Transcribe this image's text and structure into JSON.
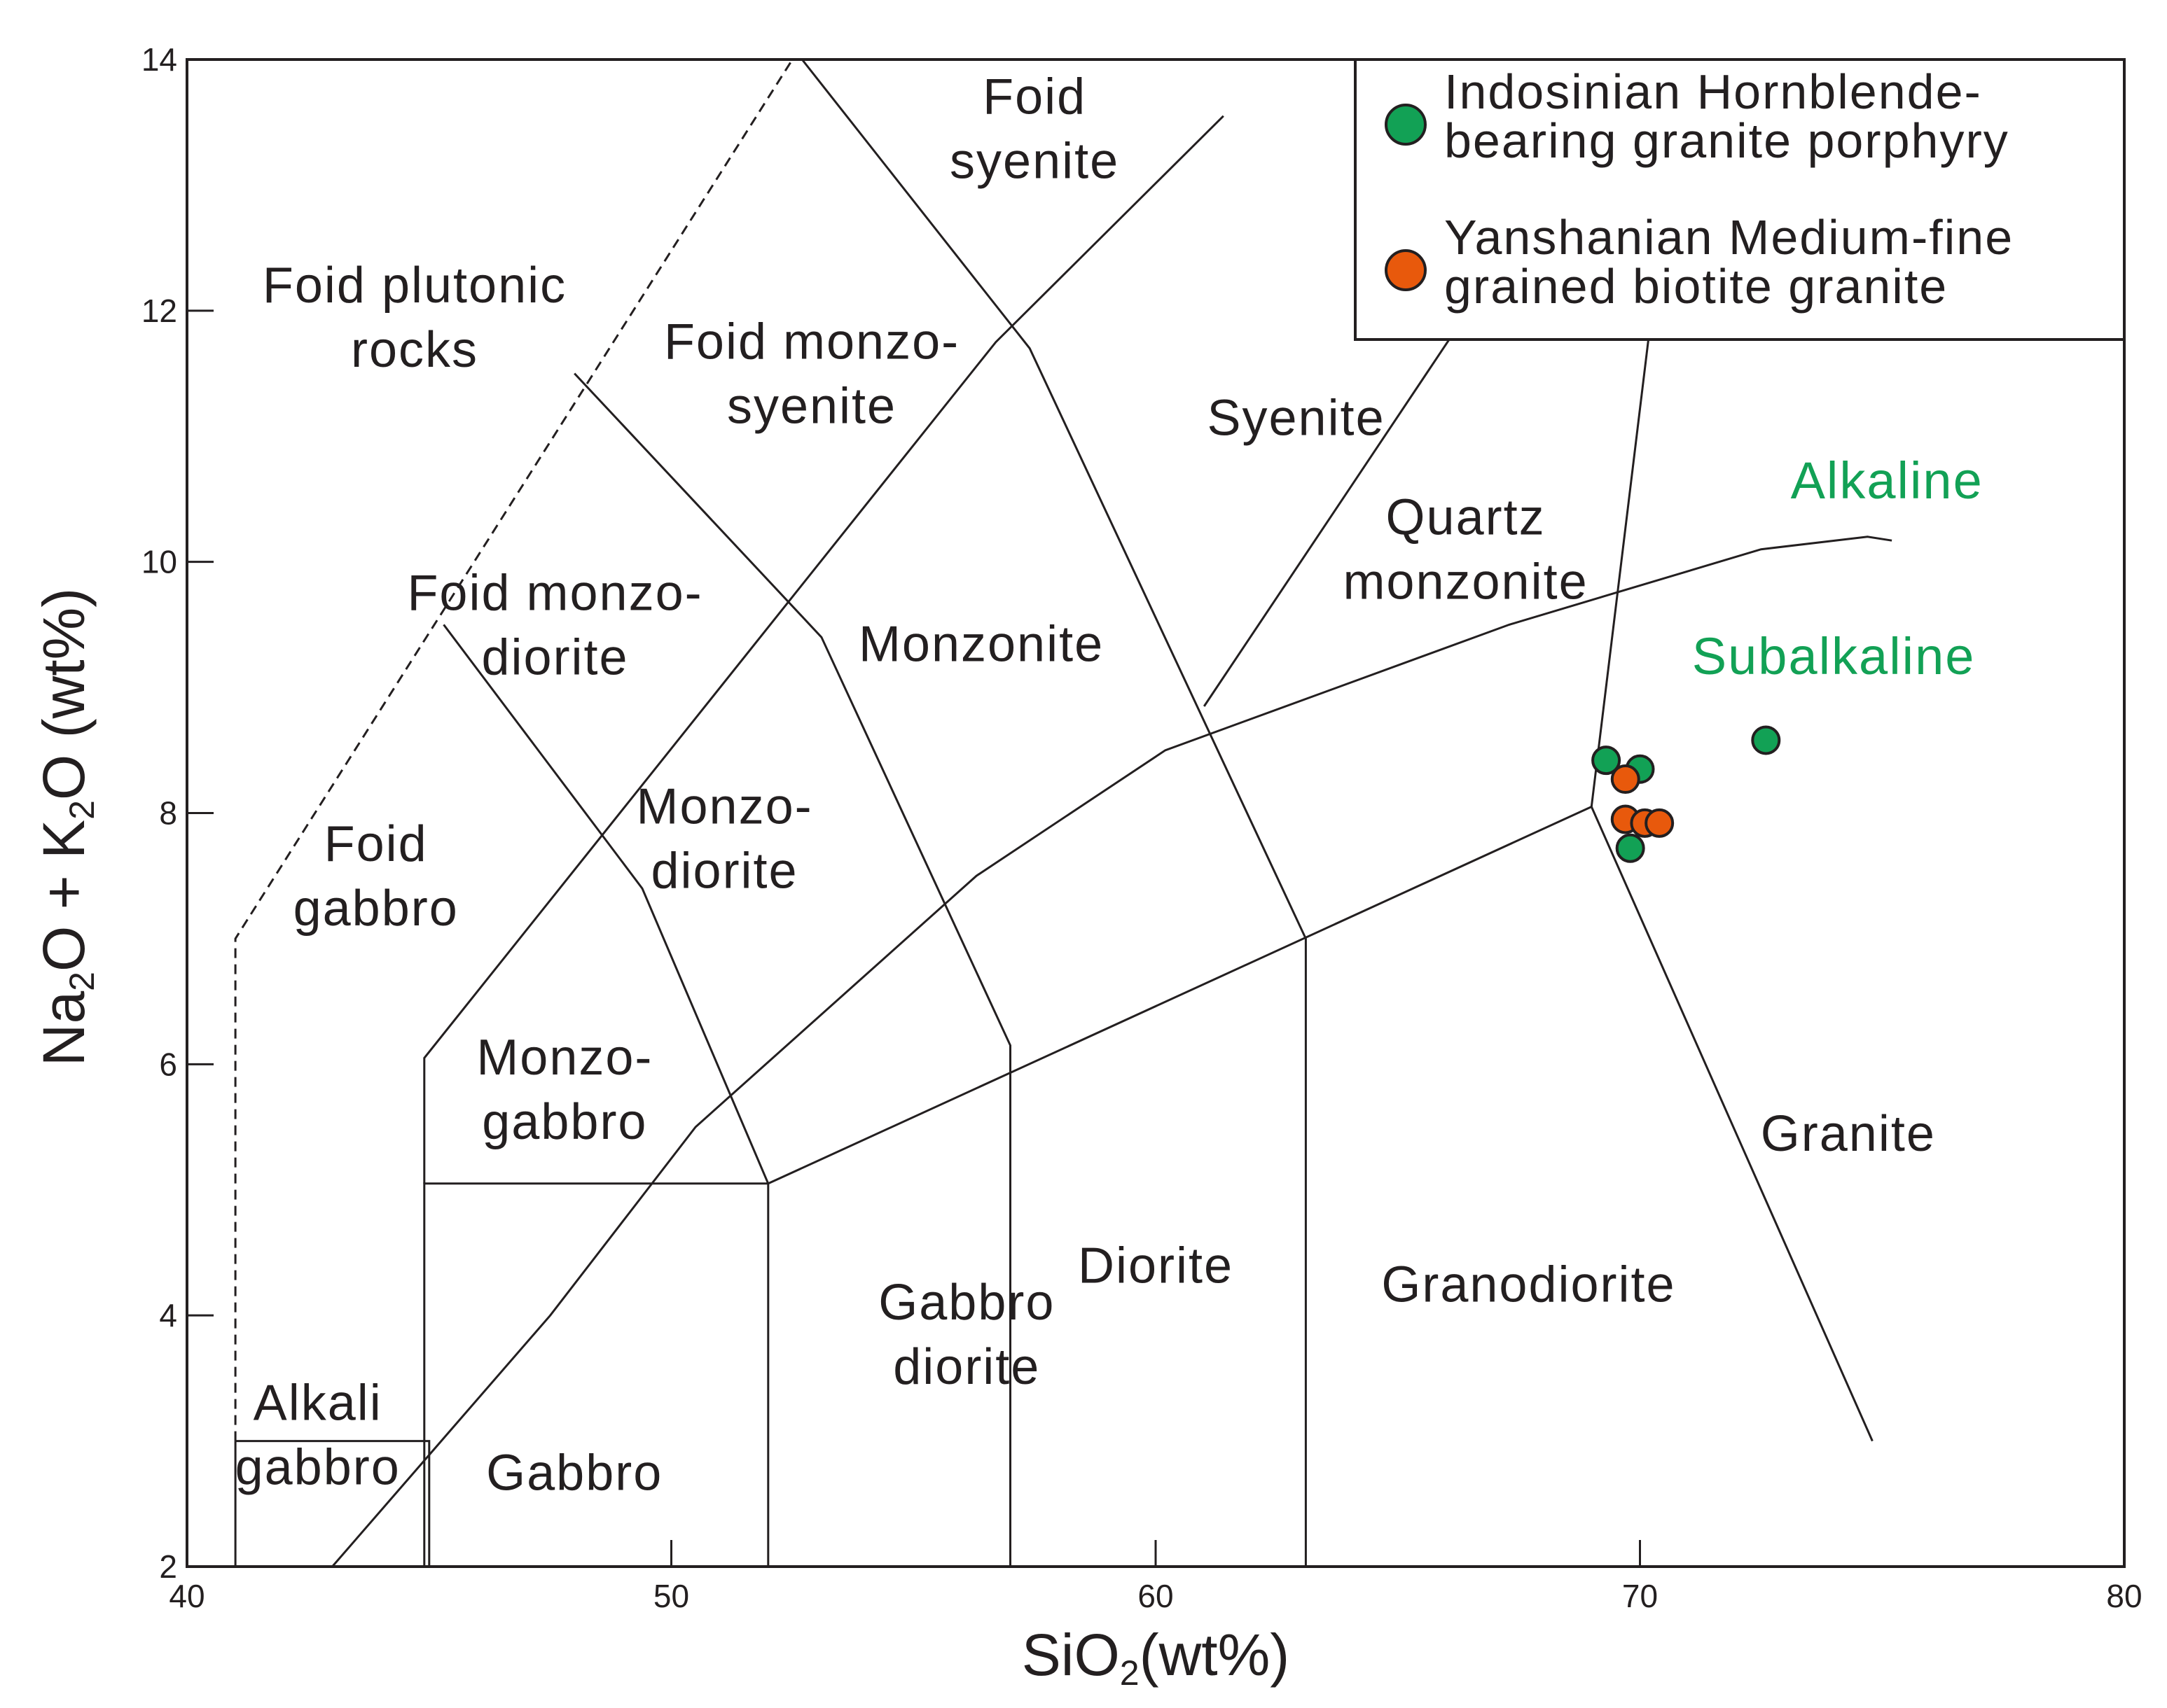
{
  "chart_data": {
    "type": "scatter",
    "title": "",
    "xlabel": {
      "main": "SiO",
      "sub": "2",
      "tail": "(wt%)"
    },
    "ylabel": {
      "parts": [
        {
          "t": "Na"
        },
        {
          "t": "2",
          "sub": true
        },
        {
          "t": "O + K"
        },
        {
          "t": "2",
          "sub": true
        },
        {
          "t": "O (wt%)"
        }
      ]
    },
    "xlim": [
      40,
      80
    ],
    "ylim": [
      2,
      14
    ],
    "xticks": [
      40,
      50,
      60,
      70,
      80
    ],
    "yticks": [
      2,
      4,
      6,
      8,
      10,
      12,
      14
    ],
    "grid": false,
    "legend_position": "top-right",
    "series": [
      {
        "name": "Indosinian Hornblende-bearing granite porphyry",
        "legend_lines": [
          "Indosinian  Hornblende-",
          "bearing granite porphyry"
        ],
        "color": "#12a155",
        "points": [
          [
            69.3,
            8.42
          ],
          [
            70.0,
            8.35
          ],
          [
            69.8,
            7.72
          ],
          [
            72.6,
            8.58
          ]
        ]
      },
      {
        "name": "Yanshanian Medium-fine grained biotite granite",
        "legend_lines": [
          "Yanshanian  Medium-fine",
          "grained biotite granite"
        ],
        "color": "#e8590c",
        "points": [
          [
            69.7,
            8.27
          ],
          [
            69.7,
            7.95
          ],
          [
            70.1,
            7.92
          ],
          [
            70.4,
            7.92
          ]
        ]
      }
    ],
    "boundaries": [
      {
        "style": "solid",
        "points": [
          [
            44.9,
            2.0
          ],
          [
            44.9,
            5.05
          ],
          [
            52.0,
            5.05
          ],
          [
            52.0,
            2.0
          ]
        ]
      },
      {
        "style": "solid",
        "points": [
          [
            44.9,
            5.05
          ],
          [
            44.9,
            6.05
          ],
          [
            56.7,
            11.75
          ],
          [
            61.4,
            13.55
          ]
        ]
      },
      {
        "style": "solid",
        "points": [
          [
            52.0,
            5.05
          ],
          [
            69.0,
            8.05
          ],
          [
            74.8,
            3.0
          ]
        ]
      },
      {
        "style": "solid",
        "points": [
          [
            57.0,
            2.0
          ],
          [
            57.0,
            6.15
          ],
          [
            53.1,
            9.4
          ],
          [
            48.0,
            11.5
          ]
        ]
      },
      {
        "style": "solid",
        "points": [
          [
            52.0,
            5.05
          ],
          [
            49.4,
            7.4
          ],
          [
            45.3,
            9.5
          ]
        ]
      },
      {
        "style": "solid",
        "points": [
          [
            63.1,
            2.0
          ],
          [
            63.1,
            7.0
          ],
          [
            57.4,
            11.7
          ],
          [
            52.7,
            14.0
          ]
        ]
      },
      {
        "style": "solid",
        "points": [
          [
            69.0,
            8.05
          ],
          [
            70.2,
            11.85
          ]
        ]
      },
      {
        "style": "solid",
        "points": [
          [
            61.0,
            8.85
          ],
          [
            66.2,
            11.85
          ]
        ]
      },
      {
        "style": "solid",
        "points": [
          [
            41.0,
            3.0
          ],
          [
            45.0,
            3.0
          ],
          [
            45.0,
            2.0
          ]
        ]
      },
      {
        "style": "solid",
        "points": [
          [
            41.0,
            3.0
          ],
          [
            41.0,
            2.0
          ]
        ]
      },
      {
        "style": "dashed",
        "points": [
          [
            41.0,
            3.0
          ],
          [
            41.0,
            7.0
          ],
          [
            52.5,
            14.0
          ]
        ]
      },
      {
        "style": "solid",
        "points": [
          [
            43.0,
            2.0
          ],
          [
            47.5,
            4.0
          ],
          [
            50.5,
            5.5
          ],
          [
            56.3,
            7.5
          ],
          [
            60.2,
            8.5
          ],
          [
            67.3,
            9.5
          ],
          [
            72.5,
            10.1
          ],
          [
            74.7,
            10.2
          ],
          [
            75.2,
            10.17
          ]
        ]
      }
    ],
    "field_labels": [
      {
        "lines": [
          "Foid",
          "syenite"
        ],
        "x": 57.5,
        "y": 13.45
      },
      {
        "lines": [
          "Foid plutonic",
          "rocks"
        ],
        "x": 44.7,
        "y": 11.95
      },
      {
        "lines": [
          "Foid monzo-",
          "syenite"
        ],
        "x": 52.9,
        "y": 11.5
      },
      {
        "lines": [
          "Syenite"
        ],
        "x": 62.9,
        "y": 11.15
      },
      {
        "lines": [
          "Quartz",
          "monzonite"
        ],
        "x": 66.4,
        "y": 10.1
      },
      {
        "lines": [
          "Foid monzo-",
          "diorite"
        ],
        "x": 47.6,
        "y": 9.5
      },
      {
        "lines": [
          "Monzonite"
        ],
        "x": 56.4,
        "y": 9.35
      },
      {
        "lines": [
          "Foid",
          "gabbro"
        ],
        "x": 43.9,
        "y": 7.5
      },
      {
        "lines": [
          "Monzo-",
          "diorite"
        ],
        "x": 51.1,
        "y": 7.8
      },
      {
        "lines": [
          "Monzo-",
          "gabbro"
        ],
        "x": 47.8,
        "y": 5.8
      },
      {
        "lines": [
          "Granite"
        ],
        "x": 74.3,
        "y": 5.45
      },
      {
        "lines": [
          "Diorite"
        ],
        "x": 60.0,
        "y": 4.4
      },
      {
        "lines": [
          "Granodiorite"
        ],
        "x": 67.7,
        "y": 4.25
      },
      {
        "lines": [
          "Gabbro",
          "diorite"
        ],
        "x": 56.1,
        "y": 3.85
      },
      {
        "lines": [
          "Alkali",
          "gabbro"
        ],
        "x": 42.7,
        "y": 3.05
      },
      {
        "lines": [
          "Gabbro"
        ],
        "x": 48.0,
        "y": 2.75
      }
    ],
    "series_labels": [
      {
        "text": "Alkaline",
        "x": 75.1,
        "y": 10.65,
        "color": "#12a155"
      },
      {
        "text": "Subalkaline",
        "x": 74.0,
        "y": 9.25,
        "color": "#12a155"
      }
    ]
  }
}
